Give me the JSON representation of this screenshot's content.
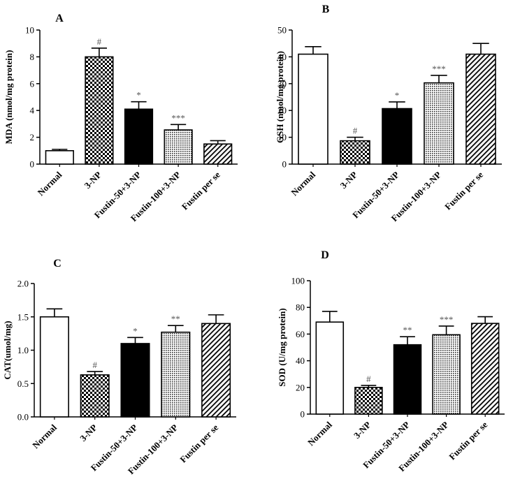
{
  "chart_data": [
    {
      "type": "bar",
      "panel_label": "A",
      "ylabel": "MDA (nmol/mg protein)",
      "ylim": [
        0,
        10
      ],
      "yticks": [
        0,
        2,
        4,
        6,
        8,
        10
      ],
      "categories": [
        "Normal",
        "3-NP",
        "Fustin-50+3-NP",
        "Fustin-100+3-NP",
        "Fustin per se"
      ],
      "values": [
        1.0,
        8.0,
        4.1,
        2.55,
        1.5
      ],
      "errors": [
        0.1,
        0.65,
        0.55,
        0.4,
        0.25
      ],
      "annotations": [
        "",
        "#",
        "*",
        "***",
        ""
      ]
    },
    {
      "type": "bar",
      "panel_label": "B",
      "ylabel": "GSH (nmol/mg protein)",
      "ylim": [
        0,
        50
      ],
      "yticks": [
        0,
        10,
        20,
        30,
        40,
        50
      ],
      "categories": [
        "Normal",
        "3-NP",
        "Fustin-50+3-NP",
        "Fustin-100+3-NP",
        "Fustin per se"
      ],
      "values": [
        41,
        8.7,
        20.7,
        30.3,
        41
      ],
      "errors": [
        2.8,
        1.3,
        2.5,
        2.8,
        4.0
      ],
      "annotations": [
        "",
        "#",
        "*",
        "***",
        ""
      ]
    },
    {
      "type": "bar",
      "panel_label": "C",
      "ylabel": "CAT(umol/mg)",
      "ylim": [
        0,
        2.0
      ],
      "yticks": [
        "0.0",
        "0.5",
        "1.0",
        "1.5",
        "2.0"
      ],
      "categories": [
        "Normal",
        "3-NP",
        "Fustin-50+3-NP",
        "Fustin-100+3-NP",
        "Fustin per se"
      ],
      "values": [
        1.5,
        0.63,
        1.1,
        1.27,
        1.4
      ],
      "errors": [
        0.12,
        0.05,
        0.09,
        0.1,
        0.13
      ],
      "annotations": [
        "",
        "#",
        "*",
        "**",
        ""
      ]
    },
    {
      "type": "bar",
      "panel_label": "D",
      "ylabel": "SOD (U/mg protein)",
      "ylim": [
        0,
        100
      ],
      "yticks": [
        0,
        20,
        40,
        60,
        80,
        100
      ],
      "categories": [
        "Normal",
        "3-NP",
        "Fustin-50+3-NP",
        "Fustin-100+3-NP",
        "Fustin per se"
      ],
      "values": [
        69,
        20,
        52,
        59.5,
        68
      ],
      "errors": [
        8,
        1.5,
        6,
        6.5,
        5
      ],
      "annotations": [
        "",
        "#",
        "**",
        "***",
        ""
      ]
    }
  ]
}
